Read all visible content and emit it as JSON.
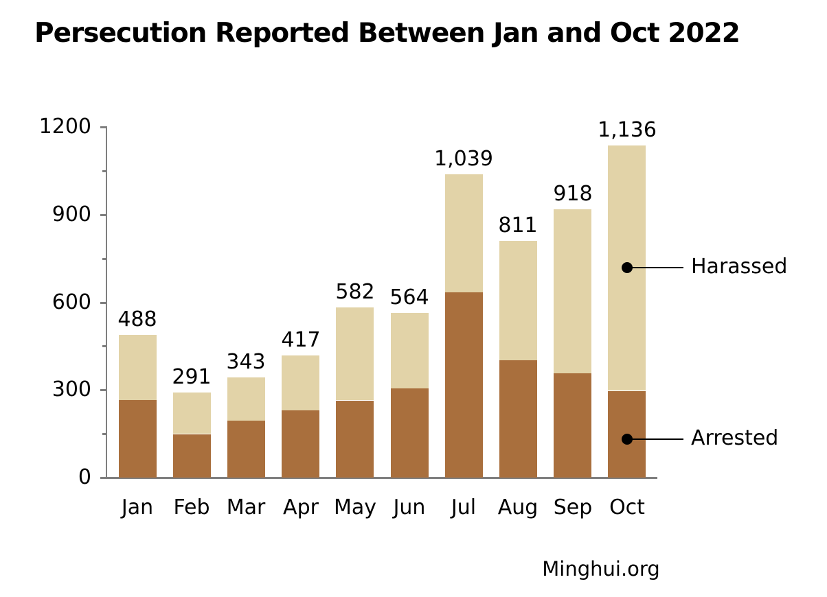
{
  "title": "Persecution Reported Between Jan and Oct 2022",
  "source": "Minghui.org",
  "colors": {
    "arrested": "#A96F3D",
    "harassed": "#E2D3A8",
    "axis": "#7F7F7F",
    "text": "#000000",
    "annotation": "#000000",
    "background": "#FFFFFF"
  },
  "chart_data": {
    "type": "bar",
    "stacked": true,
    "title": "Persecution Reported Between Jan and Oct 2022",
    "xlabel": "",
    "ylabel": "",
    "categories": [
      "Jan",
      "Feb",
      "Mar",
      "Apr",
      "May",
      "Jun",
      "Jul",
      "Aug",
      "Sep",
      "Oct"
    ],
    "series": [
      {
        "name": "Arrested",
        "color": "#A96F3D",
        "values": [
          265,
          149,
          196,
          229,
          264,
          305,
          635,
          401,
          356,
          297
        ]
      },
      {
        "name": "Harassed",
        "color": "#E2D3A8",
        "values": [
          223,
          142,
          147,
          188,
          318,
          259,
          404,
          410,
          562,
          839
        ]
      }
    ],
    "totals": [
      488,
      291,
      343,
      417,
      582,
      564,
      1039,
      811,
      918,
      1136
    ],
    "total_labels": [
      "488",
      "291",
      "343",
      "417",
      "582",
      "564",
      "1,039",
      "811",
      "918",
      "1,136"
    ],
    "ylim": [
      0,
      1200
    ],
    "yticks": [
      0,
      300,
      600,
      900,
      1200
    ],
    "ytick_labels": [
      "0",
      "300",
      "600",
      "900",
      "1200"
    ],
    "minor_tick_step": 150,
    "grid": false,
    "legend_position": "right-callouts",
    "annotations": [
      {
        "label": "Harassed",
        "category": "Oct",
        "value": 719
      },
      {
        "label": "Arrested",
        "category": "Oct",
        "value": 131
      }
    ]
  }
}
